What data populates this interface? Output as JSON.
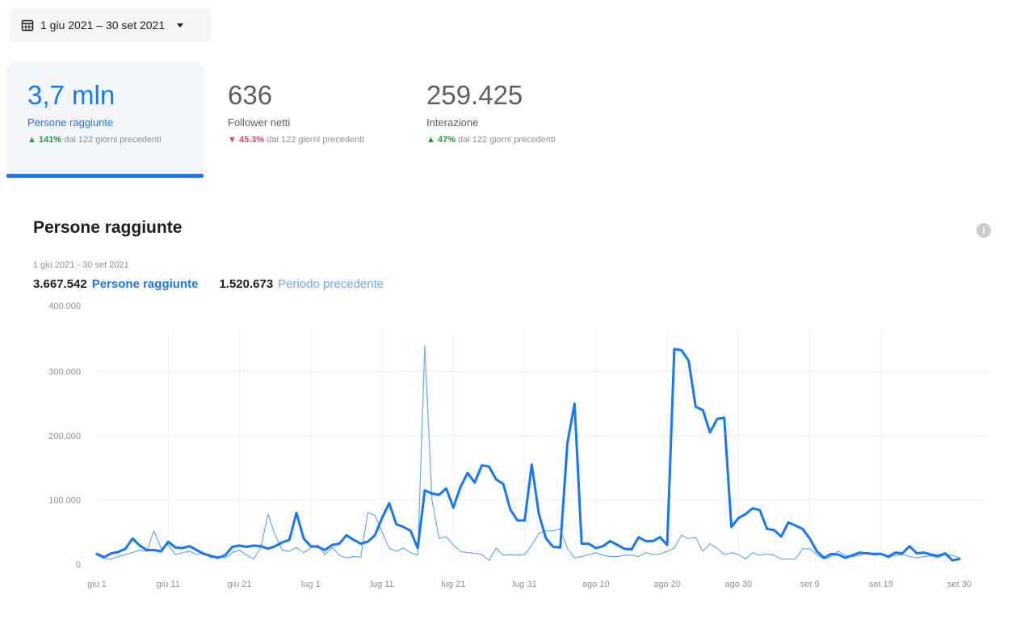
{
  "date_range": {
    "label": "1 giu 2021 – 30 set 2021",
    "icon": "calendar-icon"
  },
  "kpis": [
    {
      "value": "3,7 mln",
      "label": "Persone raggiunte",
      "change": "141%",
      "direction": "up",
      "change_suffix": "dai 122 giorni precedenti",
      "active": true
    },
    {
      "value": "636",
      "label": "Follower netti",
      "change": "45.3%",
      "direction": "down",
      "change_suffix": "dai 122 giorni precedenti",
      "active": false
    },
    {
      "value": "259.425",
      "label": "Interazione",
      "change": "47%",
      "direction": "up",
      "change_suffix": "dai 122 giorni precedenti",
      "active": false
    }
  ],
  "colors": {
    "accent": "#1877f2",
    "previous": "#6aa6f8",
    "up": "#1f9d3a",
    "down": "#e4405f"
  },
  "chart_data": {
    "type": "line",
    "title": "Persone raggiunte",
    "subtitle": "1 giu 2021 - 30 set 2021",
    "legend": [
      {
        "value": "3.667.542",
        "name": "Persone raggiunte"
      },
      {
        "value": "1.520.673",
        "name": "Periodo precedente"
      }
    ],
    "ylim": [
      0,
      400000
    ],
    "yticks": [
      0,
      100000,
      200000,
      300000,
      400000
    ],
    "ytick_labels": [
      "0",
      "100.000",
      "200.000",
      "300.000",
      "400.000"
    ],
    "xlim": [
      "2021-06-01",
      "2021-09-30"
    ],
    "xticks": [
      "giu 1",
      "giu 11",
      "giu 21",
      "lug 1",
      "lug 11",
      "lug 21",
      "lug 31",
      "ago 10",
      "ago 20",
      "ago 30",
      "set 9",
      "set 19",
      "set 30"
    ],
    "grid": true,
    "series": [
      {
        "name": "Persone raggiunte",
        "points": [
          [
            "2021-06-01",
            16000
          ],
          [
            "2021-06-02",
            11000
          ],
          [
            "2021-06-03",
            17000
          ],
          [
            "2021-06-04",
            19000
          ],
          [
            "2021-06-05",
            24000
          ],
          [
            "2021-06-06",
            40000
          ],
          [
            "2021-06-07",
            29000
          ],
          [
            "2021-06-08",
            22000
          ],
          [
            "2021-06-09",
            22000
          ],
          [
            "2021-06-10",
            20000
          ],
          [
            "2021-06-11",
            35000
          ],
          [
            "2021-06-12",
            26000
          ],
          [
            "2021-06-13",
            25000
          ],
          [
            "2021-06-14",
            28000
          ],
          [
            "2021-06-15",
            22000
          ],
          [
            "2021-06-16",
            16000
          ],
          [
            "2021-06-17",
            13000
          ],
          [
            "2021-06-18",
            10000
          ],
          [
            "2021-06-19",
            14000
          ],
          [
            "2021-06-20",
            27000
          ],
          [
            "2021-06-21",
            29000
          ],
          [
            "2021-06-22",
            27000
          ],
          [
            "2021-06-23",
            29000
          ],
          [
            "2021-06-24",
            28000
          ],
          [
            "2021-06-25",
            24000
          ],
          [
            "2021-06-26",
            28000
          ],
          [
            "2021-06-27",
            34000
          ],
          [
            "2021-06-28",
            38000
          ],
          [
            "2021-06-29",
            80000
          ],
          [
            "2021-06-30",
            40000
          ],
          [
            "2021-07-01",
            28000
          ],
          [
            "2021-07-02",
            27000
          ],
          [
            "2021-07-03",
            22000
          ],
          [
            "2021-07-04",
            30000
          ],
          [
            "2021-07-05",
            32000
          ],
          [
            "2021-07-06",
            45000
          ],
          [
            "2021-07-07",
            38000
          ],
          [
            "2021-07-08",
            32000
          ],
          [
            "2021-07-09",
            35000
          ],
          [
            "2021-07-10",
            45000
          ],
          [
            "2021-07-11",
            72000
          ],
          [
            "2021-07-12",
            95000
          ],
          [
            "2021-07-13",
            62000
          ],
          [
            "2021-07-14",
            58000
          ],
          [
            "2021-07-15",
            52000
          ],
          [
            "2021-07-16",
            25000
          ],
          [
            "2021-07-17",
            115000
          ],
          [
            "2021-07-18",
            110000
          ],
          [
            "2021-07-19",
            108000
          ],
          [
            "2021-07-20",
            118000
          ],
          [
            "2021-07-21",
            88000
          ],
          [
            "2021-07-22",
            120000
          ],
          [
            "2021-07-23",
            142000
          ],
          [
            "2021-07-24",
            127000
          ],
          [
            "2021-07-25",
            154000
          ],
          [
            "2021-07-26",
            152000
          ],
          [
            "2021-07-27",
            132000
          ],
          [
            "2021-07-28",
            125000
          ],
          [
            "2021-07-29",
            85000
          ],
          [
            "2021-07-30",
            68000
          ],
          [
            "2021-07-31",
            68000
          ],
          [
            "2021-08-01",
            155000
          ],
          [
            "2021-08-02",
            78000
          ],
          [
            "2021-08-03",
            40000
          ],
          [
            "2021-08-04",
            27000
          ],
          [
            "2021-08-05",
            26000
          ],
          [
            "2021-08-06",
            188000
          ],
          [
            "2021-08-07",
            250000
          ],
          [
            "2021-08-08",
            32000
          ],
          [
            "2021-08-09",
            32000
          ],
          [
            "2021-08-10",
            25000
          ],
          [
            "2021-08-11",
            28000
          ],
          [
            "2021-08-12",
            36000
          ],
          [
            "2021-08-13",
            30000
          ],
          [
            "2021-08-14",
            24000
          ],
          [
            "2021-08-15",
            23000
          ],
          [
            "2021-08-16",
            42000
          ],
          [
            "2021-08-17",
            36000
          ],
          [
            "2021-08-18",
            36000
          ],
          [
            "2021-08-19",
            42000
          ],
          [
            "2021-08-20",
            30000
          ],
          [
            "2021-08-21",
            335000
          ],
          [
            "2021-08-22",
            333000
          ],
          [
            "2021-08-23",
            317000
          ],
          [
            "2021-08-24",
            245000
          ],
          [
            "2021-08-25",
            240000
          ],
          [
            "2021-08-26",
            205000
          ],
          [
            "2021-08-27",
            226000
          ],
          [
            "2021-08-28",
            228000
          ],
          [
            "2021-08-29",
            58000
          ],
          [
            "2021-08-30",
            72000
          ],
          [
            "2021-08-31",
            78000
          ],
          [
            "2021-09-01",
            87000
          ],
          [
            "2021-09-02",
            84000
          ],
          [
            "2021-09-03",
            55000
          ],
          [
            "2021-09-04",
            53000
          ],
          [
            "2021-09-05",
            43000
          ],
          [
            "2021-09-06",
            65000
          ],
          [
            "2021-09-07",
            60000
          ],
          [
            "2021-09-08",
            55000
          ],
          [
            "2021-09-09",
            40000
          ],
          [
            "2021-09-10",
            20000
          ],
          [
            "2021-09-11",
            10000
          ],
          [
            "2021-09-12",
            16000
          ],
          [
            "2021-09-13",
            15000
          ],
          [
            "2021-09-14",
            10000
          ],
          [
            "2021-09-15",
            14000
          ],
          [
            "2021-09-16",
            18000
          ],
          [
            "2021-09-17",
            17000
          ],
          [
            "2021-09-18",
            16000
          ],
          [
            "2021-09-19",
            16000
          ],
          [
            "2021-09-20",
            12000
          ],
          [
            "2021-09-21",
            18000
          ],
          [
            "2021-09-22",
            17000
          ],
          [
            "2021-09-23",
            28000
          ],
          [
            "2021-09-24",
            17000
          ],
          [
            "2021-09-25",
            18000
          ],
          [
            "2021-09-26",
            15000
          ],
          [
            "2021-09-27",
            13000
          ],
          [
            "2021-09-28",
            17000
          ],
          [
            "2021-09-29",
            6000
          ],
          [
            "2021-09-30",
            8000
          ]
        ]
      },
      {
        "name": "Periodo precedente",
        "points": [
          [
            "2021-06-01",
            14000
          ],
          [
            "2021-06-02",
            9000
          ],
          [
            "2021-06-03",
            8000
          ],
          [
            "2021-06-04",
            12000
          ],
          [
            "2021-06-05",
            15000
          ],
          [
            "2021-06-06",
            18000
          ],
          [
            "2021-06-07",
            22000
          ],
          [
            "2021-06-08",
            20000
          ],
          [
            "2021-06-09",
            52000
          ],
          [
            "2021-06-10",
            25000
          ],
          [
            "2021-06-11",
            30000
          ],
          [
            "2021-06-12",
            15000
          ],
          [
            "2021-06-13",
            18000
          ],
          [
            "2021-06-14",
            20000
          ],
          [
            "2021-06-15",
            15000
          ],
          [
            "2021-06-16",
            18000
          ],
          [
            "2021-06-17",
            10000
          ],
          [
            "2021-06-18",
            12000
          ],
          [
            "2021-06-19",
            10000
          ],
          [
            "2021-06-20",
            18000
          ],
          [
            "2021-06-21",
            22000
          ],
          [
            "2021-06-22",
            14000
          ],
          [
            "2021-06-23",
            8000
          ],
          [
            "2021-06-24",
            26000
          ],
          [
            "2021-06-25",
            78000
          ],
          [
            "2021-06-26",
            45000
          ],
          [
            "2021-06-27",
            22000
          ],
          [
            "2021-06-28",
            20000
          ],
          [
            "2021-06-29",
            26000
          ],
          [
            "2021-06-30",
            18000
          ],
          [
            "2021-07-01",
            25000
          ],
          [
            "2021-07-02",
            30000
          ],
          [
            "2021-07-03",
            15000
          ],
          [
            "2021-07-04",
            26000
          ],
          [
            "2021-07-05",
            14000
          ],
          [
            "2021-07-06",
            10000
          ],
          [
            "2021-07-07",
            12000
          ],
          [
            "2021-07-08",
            11000
          ],
          [
            "2021-07-09",
            80000
          ],
          [
            "2021-07-10",
            76000
          ],
          [
            "2021-07-11",
            50000
          ],
          [
            "2021-07-12",
            25000
          ],
          [
            "2021-07-13",
            20000
          ],
          [
            "2021-07-14",
            25000
          ],
          [
            "2021-07-15",
            18000
          ],
          [
            "2021-07-16",
            14000
          ],
          [
            "2021-07-17",
            340000
          ],
          [
            "2021-07-18",
            100000
          ],
          [
            "2021-07-19",
            40000
          ],
          [
            "2021-07-20",
            43000
          ],
          [
            "2021-07-21",
            30000
          ],
          [
            "2021-07-22",
            20000
          ],
          [
            "2021-07-23",
            18000
          ],
          [
            "2021-07-24",
            17000
          ],
          [
            "2021-07-25",
            15000
          ],
          [
            "2021-07-26",
            6000
          ],
          [
            "2021-07-27",
            25000
          ],
          [
            "2021-07-28",
            14000
          ],
          [
            "2021-07-29",
            15000
          ],
          [
            "2021-07-30",
            14000
          ],
          [
            "2021-07-31",
            15000
          ],
          [
            "2021-08-01",
            30000
          ],
          [
            "2021-08-02",
            48000
          ],
          [
            "2021-08-03",
            52000
          ],
          [
            "2021-08-04",
            52000
          ],
          [
            "2021-08-05",
            55000
          ],
          [
            "2021-08-06",
            25000
          ],
          [
            "2021-08-07",
            10000
          ],
          [
            "2021-08-08",
            12000
          ],
          [
            "2021-08-09",
            15000
          ],
          [
            "2021-08-10",
            18000
          ],
          [
            "2021-08-11",
            14000
          ],
          [
            "2021-08-12",
            12000
          ],
          [
            "2021-08-13",
            12000
          ],
          [
            "2021-08-14",
            14000
          ],
          [
            "2021-08-15",
            14000
          ],
          [
            "2021-08-16",
            12000
          ],
          [
            "2021-08-17",
            18000
          ],
          [
            "2021-08-18",
            15000
          ],
          [
            "2021-08-19",
            16000
          ],
          [
            "2021-08-20",
            20000
          ],
          [
            "2021-08-21",
            25000
          ],
          [
            "2021-08-22",
            45000
          ],
          [
            "2021-08-23",
            40000
          ],
          [
            "2021-08-24",
            42000
          ],
          [
            "2021-08-25",
            20000
          ],
          [
            "2021-08-26",
            32000
          ],
          [
            "2021-08-27",
            25000
          ],
          [
            "2021-08-28",
            15000
          ],
          [
            "2021-08-29",
            18000
          ],
          [
            "2021-08-30",
            15000
          ],
          [
            "2021-08-31",
            8000
          ],
          [
            "2021-09-01",
            18000
          ],
          [
            "2021-09-02",
            14000
          ],
          [
            "2021-09-03",
            16000
          ],
          [
            "2021-09-04",
            14000
          ],
          [
            "2021-09-05",
            8000
          ],
          [
            "2021-09-06",
            8000
          ],
          [
            "2021-09-07",
            8000
          ],
          [
            "2021-09-08",
            24000
          ],
          [
            "2021-09-09",
            24000
          ],
          [
            "2021-09-10",
            15000
          ],
          [
            "2021-09-11",
            8000
          ],
          [
            "2021-09-12",
            12000
          ],
          [
            "2021-09-13",
            20000
          ],
          [
            "2021-09-14",
            14000
          ],
          [
            "2021-09-15",
            12000
          ],
          [
            "2021-09-16",
            14000
          ],
          [
            "2021-09-17",
            18000
          ],
          [
            "2021-09-18",
            14000
          ],
          [
            "2021-09-19",
            16000
          ],
          [
            "2021-09-20",
            10000
          ],
          [
            "2021-09-21",
            14000
          ],
          [
            "2021-09-22",
            15000
          ],
          [
            "2021-09-23",
            12000
          ],
          [
            "2021-09-24",
            10000
          ],
          [
            "2021-09-25",
            12000
          ],
          [
            "2021-09-26",
            13000
          ],
          [
            "2021-09-27",
            10000
          ],
          [
            "2021-09-28",
            15000
          ],
          [
            "2021-09-29",
            14000
          ],
          [
            "2021-09-30",
            10000
          ]
        ]
      }
    ]
  }
}
